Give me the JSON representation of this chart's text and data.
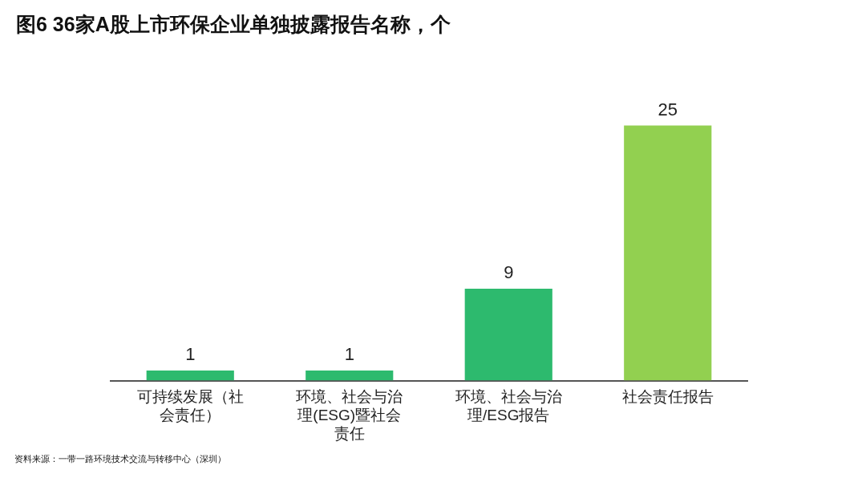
{
  "chart_data": {
    "type": "bar",
    "title": "图6  36家A股上市环保企业单独披露报告名称，个",
    "categories": [
      "可持续发展（社会责任）",
      "环境、社会与治理(ESG)暨社会责任",
      "环境、社会与治理/ESG报告",
      "社会责任报告"
    ],
    "values": [
      1,
      1,
      9,
      25
    ],
    "colors": [
      "#2dba6e",
      "#2dba6e",
      "#2dba6e",
      "#92d050"
    ],
    "data_labels": true,
    "legend": false,
    "annotations": [
      "资料来源：一带一路环境技术交流与转移中心（深圳）"
    ]
  }
}
